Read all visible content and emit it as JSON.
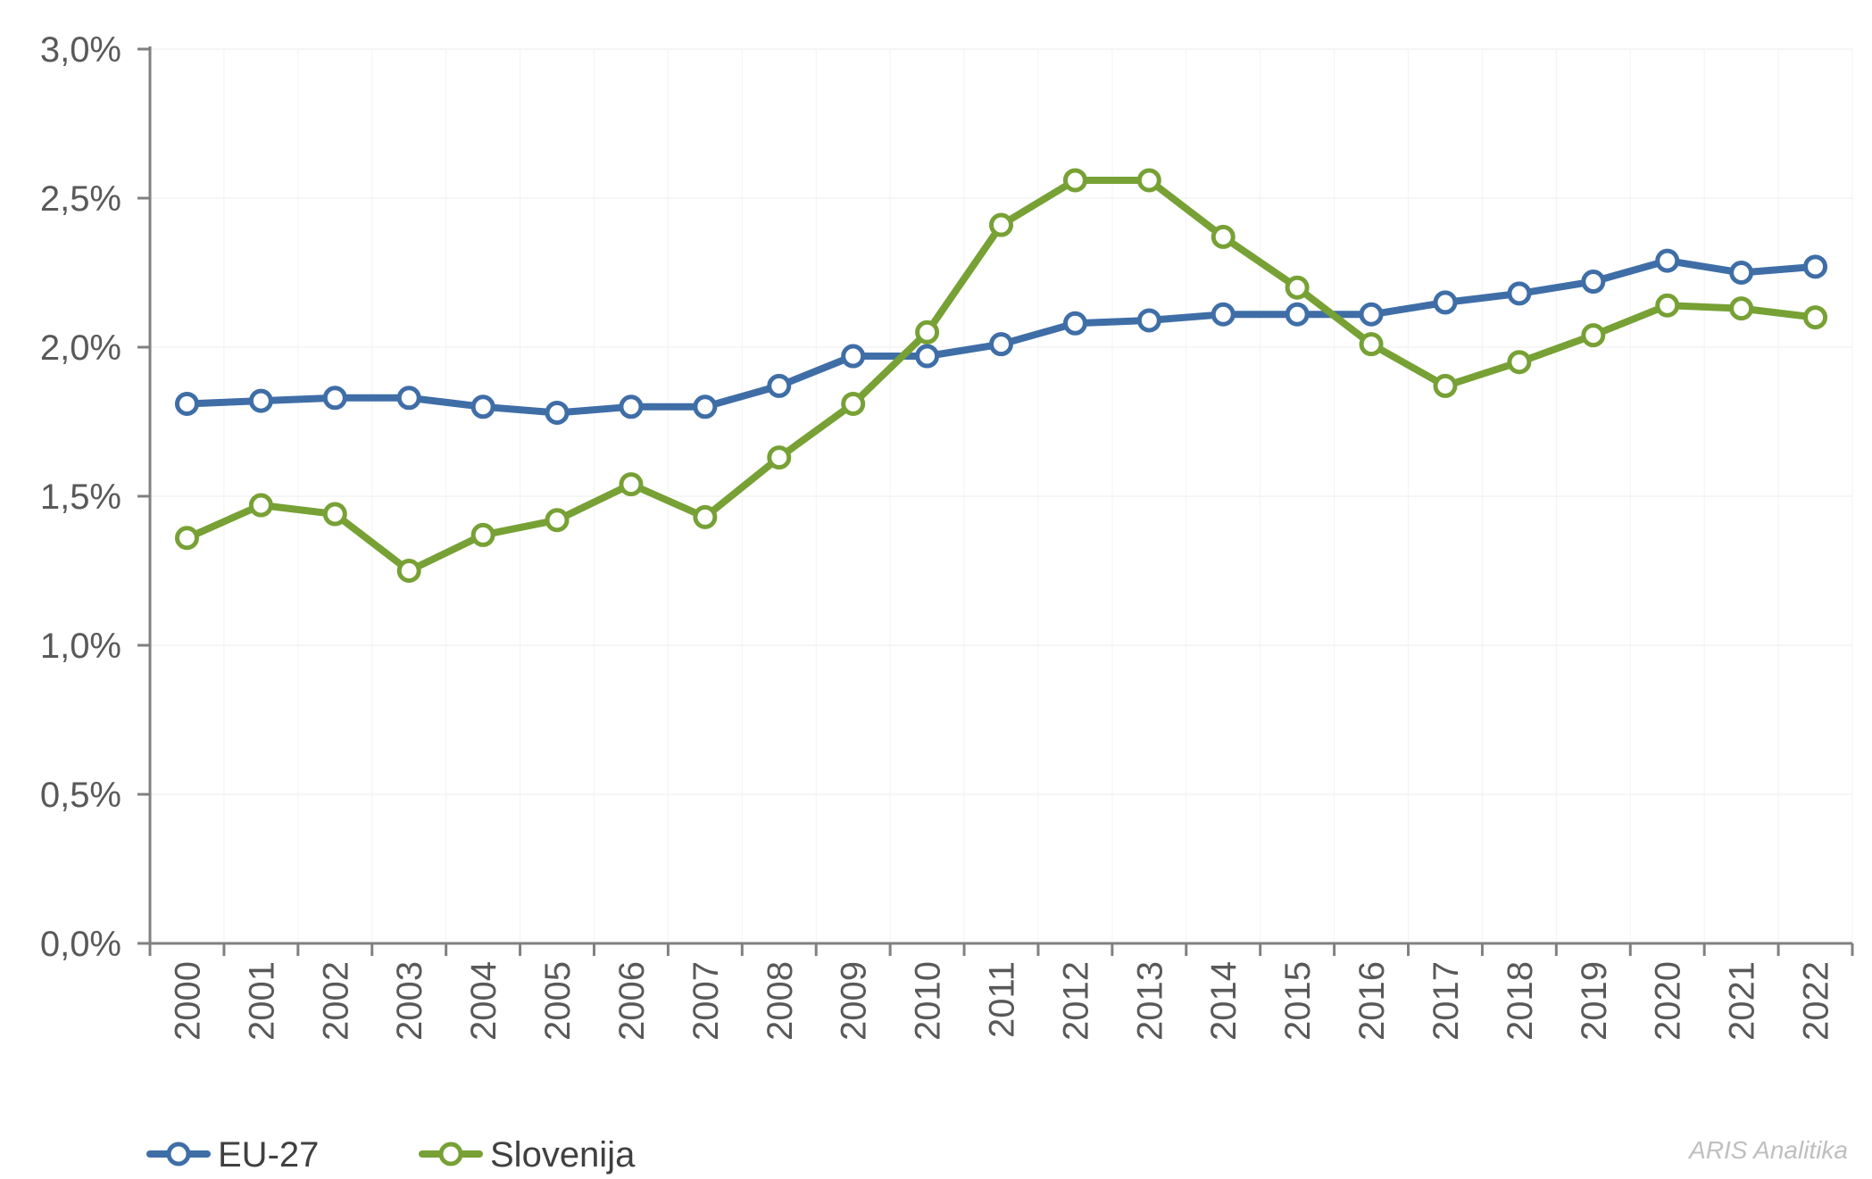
{
  "chart_data": {
    "type": "line",
    "title": "",
    "xlabel": "",
    "ylabel": "",
    "categories": [
      "2000",
      "2001",
      "2002",
      "2003",
      "2004",
      "2005",
      "2006",
      "2007",
      "2008",
      "2009",
      "2010",
      "2011",
      "2012",
      "2013",
      "2014",
      "2015",
      "2016",
      "2017",
      "2018",
      "2019",
      "2020",
      "2021",
      "2022"
    ],
    "ylim": [
      0,
      3.0
    ],
    "y_ticks": [
      0,
      0.5,
      1.0,
      1.5,
      2.0,
      2.5,
      3.0
    ],
    "y_tick_labels": [
      "0,0%",
      "0,5%",
      "1,0%",
      "1,5%",
      "2,0%",
      "2,5%",
      "3,0%"
    ],
    "grid": true,
    "legend_position": "bottom-left",
    "series": [
      {
        "name": "EU-27",
        "color": "#3f6ea7",
        "values": [
          1.81,
          1.82,
          1.83,
          1.83,
          1.8,
          1.78,
          1.8,
          1.8,
          1.87,
          1.97,
          1.97,
          2.01,
          2.08,
          2.09,
          2.11,
          2.11,
          2.11,
          2.15,
          2.18,
          2.22,
          2.29,
          2.25,
          2.27
        ]
      },
      {
        "name": "Slovenija",
        "color": "#77a135",
        "values": [
          1.36,
          1.47,
          1.44,
          1.25,
          1.37,
          1.42,
          1.54,
          1.43,
          1.63,
          1.81,
          2.05,
          2.41,
          2.56,
          2.56,
          2.37,
          2.2,
          2.01,
          1.87,
          1.95,
          2.04,
          2.14,
          2.13,
          2.1
        ]
      }
    ],
    "annotation": "ARIS Analitika"
  }
}
